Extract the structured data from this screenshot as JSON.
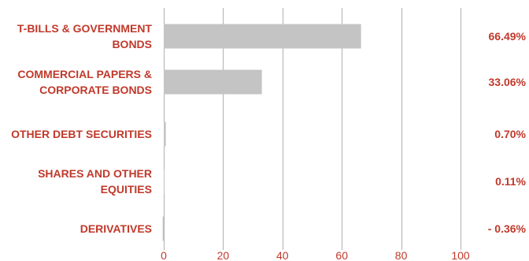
{
  "chart_data": {
    "type": "bar",
    "orientation": "horizontal",
    "categories": [
      [
        "T-BILLS & GOVERNMENT",
        "BONDS"
      ],
      [
        "COMMERCIAL PAPERS &",
        "CORPORATE BONDS"
      ],
      [
        "OTHER DEBT SECURITIES"
      ],
      [
        "SHARES AND OTHER",
        "EQUITIES"
      ],
      [
        "DERIVATIVES"
      ]
    ],
    "values": [
      66.49,
      33.06,
      0.7,
      0.11,
      -0.36
    ],
    "value_labels": [
      "66.49%",
      "33.06%",
      "0.70%",
      "0.11%",
      "- 0.36%"
    ],
    "xlim": [
      0,
      100
    ],
    "xticks": [
      "0",
      "20",
      "40",
      "60",
      "80",
      "100"
    ],
    "grid": "vertical",
    "colors": {
      "bar": "#c4c4c4",
      "text": "#c0392b",
      "grid": "#b0b0b0"
    }
  }
}
